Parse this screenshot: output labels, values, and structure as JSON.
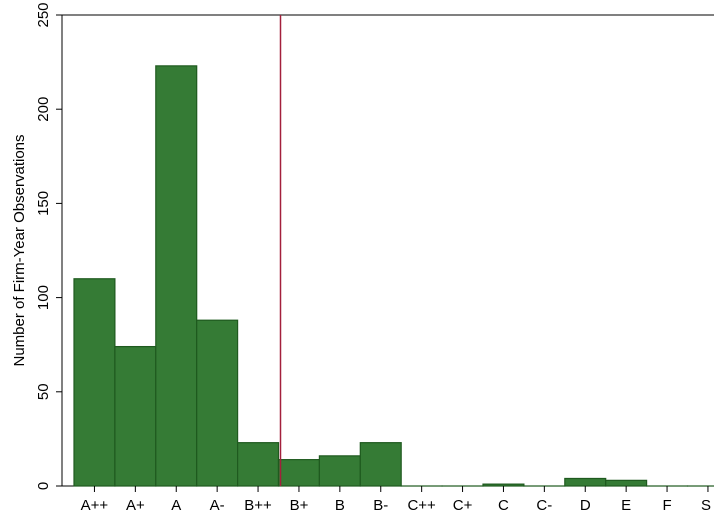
{
  "chart_data": {
    "type": "bar",
    "title": "",
    "xlabel": "",
    "ylabel": "Number of Firm-Year Observations",
    "categories": [
      "A++",
      "A+",
      "A",
      "A-",
      "B++",
      "B+",
      "B",
      "B-",
      "C++",
      "C+",
      "C",
      "C-",
      "D",
      "E",
      "F",
      "S"
    ],
    "values": [
      110,
      74,
      223,
      88,
      23,
      14,
      16,
      23,
      0,
      0,
      1,
      0,
      4,
      3,
      0,
      0
    ],
    "ylim": [
      0,
      250
    ],
    "yticks": [
      0,
      50,
      100,
      150,
      200,
      250
    ],
    "reference_line": {
      "orientation": "vertical",
      "position": "between B++ and B+",
      "color": "#a3203c"
    },
    "bar_color": "#357b35",
    "bar_edge_color": "#1f5a1f",
    "grid": false,
    "legend": "none"
  }
}
